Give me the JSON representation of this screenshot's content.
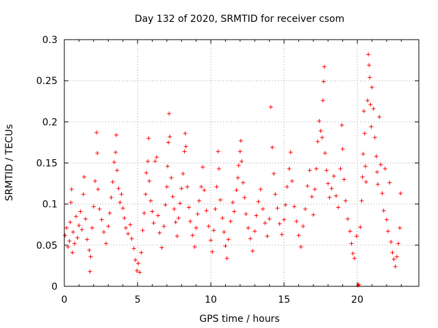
{
  "chart_data": {
    "type": "scatter",
    "title": "Day 132 of 2020, SRMTID for receiver csom",
    "xlabel": "GPS time / hours",
    "ylabel": "SRMTID / TECUs",
    "xlim": [
      0,
      24.2
    ],
    "ylim": [
      0,
      0.3
    ],
    "x_ticks": [
      0,
      5,
      10,
      15,
      20
    ],
    "x_tick_labels": [
      "0",
      "5",
      "10",
      "15",
      "20"
    ],
    "y_ticks": [
      0,
      0.05,
      0.1,
      0.15,
      0.2,
      0.25,
      0.3
    ],
    "y_tick_labels": [
      "0",
      "0.05",
      "0.1",
      "0.15",
      "0.2",
      "0.25",
      "0.3"
    ],
    "grid": true,
    "marker": "plus",
    "color": "#ff0000",
    "series": [
      {
        "name": "SRMTID",
        "points": [
          [
            0.05,
            0.062
          ],
          [
            0.15,
            0.071
          ],
          [
            0.25,
            0.048
          ],
          [
            0.35,
            0.055
          ],
          [
            0.4,
            0.078
          ],
          [
            0.45,
            0.102
          ],
          [
            0.5,
            0.118
          ],
          [
            0.55,
            0.041
          ],
          [
            0.6,
            0.066
          ],
          [
            0.7,
            0.052
          ],
          [
            0.8,
            0.085
          ],
          [
            0.9,
            0.059
          ],
          [
            1.0,
            0.074
          ],
          [
            1.1,
            0.091
          ],
          [
            1.2,
            0.069
          ],
          [
            1.3,
            0.112
          ],
          [
            1.35,
            0.133
          ],
          [
            1.45,
            0.082
          ],
          [
            1.55,
            0.057
          ],
          [
            1.7,
            0.044
          ],
          [
            1.8,
            0.036
          ],
          [
            1.75,
            0.018
          ],
          [
            1.9,
            0.071
          ],
          [
            2.0,
            0.097
          ],
          [
            2.1,
            0.128
          ],
          [
            2.2,
            0.187
          ],
          [
            2.25,
            0.162
          ],
          [
            2.3,
            0.118
          ],
          [
            2.4,
            0.094
          ],
          [
            2.55,
            0.081
          ],
          [
            2.7,
            0.066
          ],
          [
            2.85,
            0.052
          ],
          [
            3.0,
            0.073
          ],
          [
            3.1,
            0.089
          ],
          [
            3.2,
            0.108
          ],
          [
            3.3,
            0.127
          ],
          [
            3.4,
            0.151
          ],
          [
            3.5,
            0.163
          ],
          [
            3.55,
            0.184
          ],
          [
            3.6,
            0.141
          ],
          [
            3.7,
            0.119
          ],
          [
            3.8,
            0.102
          ],
          [
            3.9,
            0.112
          ],
          [
            4.0,
            0.095
          ],
          [
            4.1,
            0.083
          ],
          [
            4.2,
            0.071
          ],
          [
            4.35,
            0.064
          ],
          [
            4.5,
            0.075
          ],
          [
            4.6,
            0.058
          ],
          [
            4.75,
            0.046
          ],
          [
            4.85,
            0.032
          ],
          [
            4.95,
            0.019
          ],
          [
            5.05,
            0.028
          ],
          [
            5.15,
            0.017
          ],
          [
            5.25,
            0.041
          ],
          [
            5.35,
            0.068
          ],
          [
            5.45,
            0.089
          ],
          [
            5.55,
            0.112
          ],
          [
            5.6,
            0.138
          ],
          [
            5.7,
            0.152
          ],
          [
            5.75,
            0.18
          ],
          [
            5.8,
            0.128
          ],
          [
            5.9,
            0.104
          ],
          [
            6.0,
            0.091
          ],
          [
            6.1,
            0.077
          ],
          [
            6.2,
            0.152
          ],
          [
            6.3,
            0.157
          ],
          [
            6.4,
            0.086
          ],
          [
            6.5,
            0.065
          ],
          [
            6.65,
            0.047
          ],
          [
            6.8,
            0.073
          ],
          [
            6.9,
            0.099
          ],
          [
            7.0,
            0.121
          ],
          [
            7.05,
            0.146
          ],
          [
            7.1,
            0.175
          ],
          [
            7.15,
            0.21
          ],
          [
            7.2,
            0.182
          ],
          [
            7.3,
            0.132
          ],
          [
            7.4,
            0.109
          ],
          [
            7.5,
            0.094
          ],
          [
            7.6,
            0.078
          ],
          [
            7.7,
            0.061
          ],
          [
            7.8,
            0.083
          ],
          [
            7.9,
            0.101
          ],
          [
            8.0,
            0.119
          ],
          [
            8.1,
            0.137
          ],
          [
            8.2,
            0.164
          ],
          [
            8.25,
            0.186
          ],
          [
            8.3,
            0.17
          ],
          [
            8.4,
            0.121
          ],
          [
            8.5,
            0.096
          ],
          [
            8.6,
            0.079
          ],
          [
            8.75,
            0.062
          ],
          [
            8.9,
            0.048
          ],
          [
            9.0,
            0.071
          ],
          [
            9.1,
            0.088
          ],
          [
            9.2,
            0.104
          ],
          [
            9.35,
            0.121
          ],
          [
            9.45,
            0.145
          ],
          [
            9.55,
            0.117
          ],
          [
            9.7,
            0.092
          ],
          [
            9.85,
            0.073
          ],
          [
            10.0,
            0.056
          ],
          [
            10.1,
            0.042
          ],
          [
            10.2,
            0.068
          ],
          [
            10.3,
            0.094
          ],
          [
            10.4,
            0.121
          ],
          [
            10.5,
            0.164
          ],
          [
            10.55,
            0.143
          ],
          [
            10.65,
            0.105
          ],
          [
            10.8,
            0.083
          ],
          [
            10.9,
            0.066
          ],
          [
            11.0,
            0.049
          ],
          [
            11.1,
            0.034
          ],
          [
            11.2,
            0.057
          ],
          [
            11.35,
            0.079
          ],
          [
            11.5,
            0.102
          ],
          [
            11.6,
            0.091
          ],
          [
            11.75,
            0.117
          ],
          [
            11.85,
            0.132
          ],
          [
            11.9,
            0.147
          ],
          [
            12.0,
            0.164
          ],
          [
            12.05,
            0.177
          ],
          [
            12.1,
            0.152
          ],
          [
            12.2,
            0.126
          ],
          [
            12.3,
            0.108
          ],
          [
            12.4,
            0.088
          ],
          [
            12.55,
            0.071
          ],
          [
            12.7,
            0.058
          ],
          [
            12.85,
            0.043
          ],
          [
            13.0,
            0.067
          ],
          [
            13.1,
            0.086
          ],
          [
            13.25,
            0.103
          ],
          [
            13.4,
            0.118
          ],
          [
            13.55,
            0.094
          ],
          [
            13.7,
            0.077
          ],
          [
            13.85,
            0.061
          ],
          [
            14.0,
            0.082
          ],
          [
            14.1,
            0.218
          ],
          [
            14.2,
            0.169
          ],
          [
            14.3,
            0.137
          ],
          [
            14.4,
            0.112
          ],
          [
            14.55,
            0.095
          ],
          [
            14.7,
            0.076
          ],
          [
            14.85,
            0.063
          ],
          [
            15.0,
            0.081
          ],
          [
            15.1,
            0.099
          ],
          [
            15.2,
            0.121
          ],
          [
            15.35,
            0.143
          ],
          [
            15.45,
            0.163
          ],
          [
            15.55,
            0.128
          ],
          [
            15.7,
            0.097
          ],
          [
            15.85,
            0.079
          ],
          [
            16.0,
            0.062
          ],
          [
            16.15,
            0.048
          ],
          [
            16.3,
            0.073
          ],
          [
            16.45,
            0.094
          ],
          [
            16.6,
            0.122
          ],
          [
            16.75,
            0.141
          ],
          [
            16.9,
            0.109
          ],
          [
            17.0,
            0.087
          ],
          [
            17.1,
            0.118
          ],
          [
            17.2,
            0.143
          ],
          [
            17.3,
            0.176
          ],
          [
            17.4,
            0.201
          ],
          [
            17.5,
            0.189
          ],
          [
            17.6,
            0.181
          ],
          [
            17.65,
            0.226
          ],
          [
            17.7,
            0.249
          ],
          [
            17.75,
            0.267
          ],
          [
            17.8,
            0.162
          ],
          [
            17.9,
            0.141
          ],
          [
            18.0,
            0.125
          ],
          [
            18.1,
            0.108
          ],
          [
            18.25,
            0.119
          ],
          [
            18.4,
            0.134
          ],
          [
            18.55,
            0.11
          ],
          [
            18.7,
            0.096
          ],
          [
            18.85,
            0.143
          ],
          [
            18.95,
            0.196
          ],
          [
            19.0,
            0.167
          ],
          [
            19.1,
            0.13
          ],
          [
            19.2,
            0.104
          ],
          [
            19.35,
            0.082
          ],
          [
            19.5,
            0.067
          ],
          [
            19.6,
            0.052
          ],
          [
            19.7,
            0.04
          ],
          [
            19.8,
            0.034
          ],
          [
            19.95,
            0.061
          ],
          [
            20.05,
            0.001
          ],
          [
            20.1,
            0.002
          ],
          [
            20.2,
            0.072
          ],
          [
            20.3,
            0.104
          ],
          [
            20.35,
            0.133
          ],
          [
            20.4,
            0.161
          ],
          [
            20.45,
            0.213
          ],
          [
            20.5,
            0.186
          ],
          [
            20.55,
            0.146
          ],
          [
            20.6,
            0.127
          ],
          [
            20.7,
            0.226
          ],
          [
            20.75,
            0.282
          ],
          [
            20.8,
            0.269
          ],
          [
            20.85,
            0.254
          ],
          [
            20.9,
            0.221
          ],
          [
            20.95,
            0.194
          ],
          [
            21.0,
            0.242
          ],
          [
            21.1,
            0.216
          ],
          [
            21.2,
            0.181
          ],
          [
            21.3,
            0.158
          ],
          [
            21.35,
            0.139
          ],
          [
            21.4,
            0.124
          ],
          [
            21.5,
            0.206
          ],
          [
            21.6,
            0.148
          ],
          [
            21.7,
            0.113
          ],
          [
            21.8,
            0.092
          ],
          [
            21.9,
            0.143
          ],
          [
            22.0,
            0.081
          ],
          [
            22.1,
            0.067
          ],
          [
            22.2,
            0.126
          ],
          [
            22.3,
            0.054
          ],
          [
            22.4,
            0.041
          ],
          [
            22.5,
            0.033
          ],
          [
            22.6,
            0.024
          ],
          [
            22.7,
            0.036
          ],
          [
            22.8,
            0.052
          ],
          [
            22.9,
            0.071
          ],
          [
            22.95,
            0.113
          ]
        ]
      }
    ]
  }
}
